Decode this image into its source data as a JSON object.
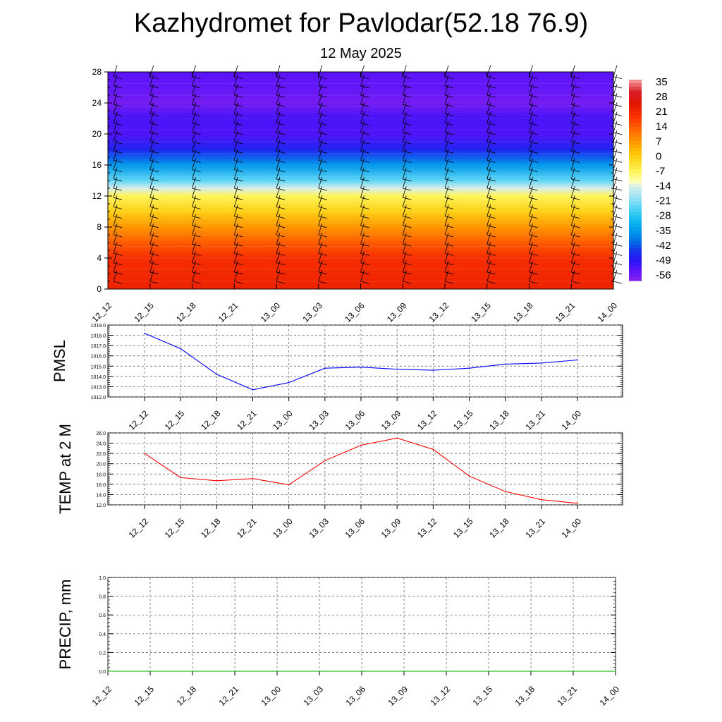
{
  "title": "Kazhydromet for Pavlodar(52.18 76.9)",
  "subtitle": "12 May 2025",
  "colors": {
    "pmsl_line": "#0000ff",
    "temp_line": "#ff0000",
    "precip_line": "#00aa00",
    "grid": "#555555",
    "barb": "#000000"
  },
  "chart_data": [
    {
      "type": "heatmap",
      "name": "",
      "x": [
        "12_12",
        "12_15",
        "12_18",
        "12_21",
        "13_00",
        "13_03",
        "13_06",
        "13_09",
        "13_12",
        "13_15",
        "13_18",
        "13_21",
        "14_00"
      ],
      "y_ticks": [
        "0",
        "4",
        "8",
        "12",
        "16",
        "20",
        "24",
        "28"
      ],
      "ylim": [
        0,
        28
      ],
      "colorbar": {
        "labels": [
          "35",
          "28",
          "21",
          "14",
          "7",
          "0",
          "-7",
          "-14",
          "-21",
          "-28",
          "-35",
          "-42",
          "-49",
          "-56"
        ],
        "range": [
          -60,
          38
        ]
      },
      "temperature_by_level": [
        {
          "y": 0,
          "value": 23
        },
        {
          "y": 2,
          "value": 22
        },
        {
          "y": 4,
          "value": 21
        },
        {
          "y": 6,
          "value": 15
        },
        {
          "y": 8,
          "value": 8
        },
        {
          "y": 10,
          "value": 0
        },
        {
          "y": 12,
          "value": -7
        },
        {
          "y": 13,
          "value": -14
        },
        {
          "y": 14,
          "value": -24
        },
        {
          "y": 16,
          "value": -36
        },
        {
          "y": 18,
          "value": -48
        },
        {
          "y": 20,
          "value": -54
        },
        {
          "y": 22,
          "value": -53
        },
        {
          "y": 24,
          "value": -58
        },
        {
          "y": 26,
          "value": -56
        },
        {
          "y": 28,
          "value": -55
        }
      ],
      "wind_barbs": "present",
      "grid": false
    },
    {
      "type": "line",
      "ylabel": "PMSL",
      "x": [
        "12_12",
        "12_15",
        "12_18",
        "12_21",
        "13_00",
        "13_03",
        "13_06",
        "13_09",
        "13_12",
        "13_15",
        "13_18",
        "13_21",
        "14_00"
      ],
      "values": [
        1018.2,
        1016.7,
        1014.2,
        1012.7,
        1013.4,
        1014.8,
        1014.9,
        1014.7,
        1014.6,
        1014.8,
        1015.2,
        1015.3,
        1015.6
      ],
      "y_ticks": [
        "1012.0",
        "1013.0",
        "1014.0",
        "1015.0",
        "1016.0",
        "1017.0",
        "1018.0",
        "1019.0"
      ],
      "ylim": [
        1012,
        1019
      ],
      "grid": true
    },
    {
      "type": "line",
      "ylabel": "TEMP at 2 M",
      "x": [
        "12_12",
        "12_15",
        "12_18",
        "12_21",
        "13_00",
        "13_03",
        "13_06",
        "13_09",
        "13_12",
        "13_15",
        "13_18",
        "13_21",
        "14_00"
      ],
      "values": [
        22.0,
        17.3,
        16.7,
        17.1,
        15.9,
        20.6,
        23.6,
        25.0,
        22.8,
        17.6,
        14.6,
        13.0,
        12.3
      ],
      "y_ticks": [
        "12.0",
        "14.0",
        "16.0",
        "18.0",
        "20.0",
        "22.0",
        "24.0",
        "26.0"
      ],
      "ylim": [
        12,
        26
      ],
      "grid": true
    },
    {
      "type": "line",
      "ylabel": "PRECIP, mm",
      "x": [
        "12_12",
        "12_15",
        "12_18",
        "12_21",
        "13_00",
        "13_03",
        "13_06",
        "13_09",
        "13_12",
        "13_15",
        "13_18",
        "13_21",
        "14_00"
      ],
      "values": [
        0,
        0,
        0,
        0,
        0,
        0,
        0,
        0,
        0,
        0,
        0,
        0,
        0
      ],
      "y_ticks": [
        "0.0",
        "0.2",
        "0.4",
        "0.6",
        "0.8",
        "1.0"
      ],
      "ylim": [
        0,
        1
      ],
      "grid": true
    }
  ]
}
